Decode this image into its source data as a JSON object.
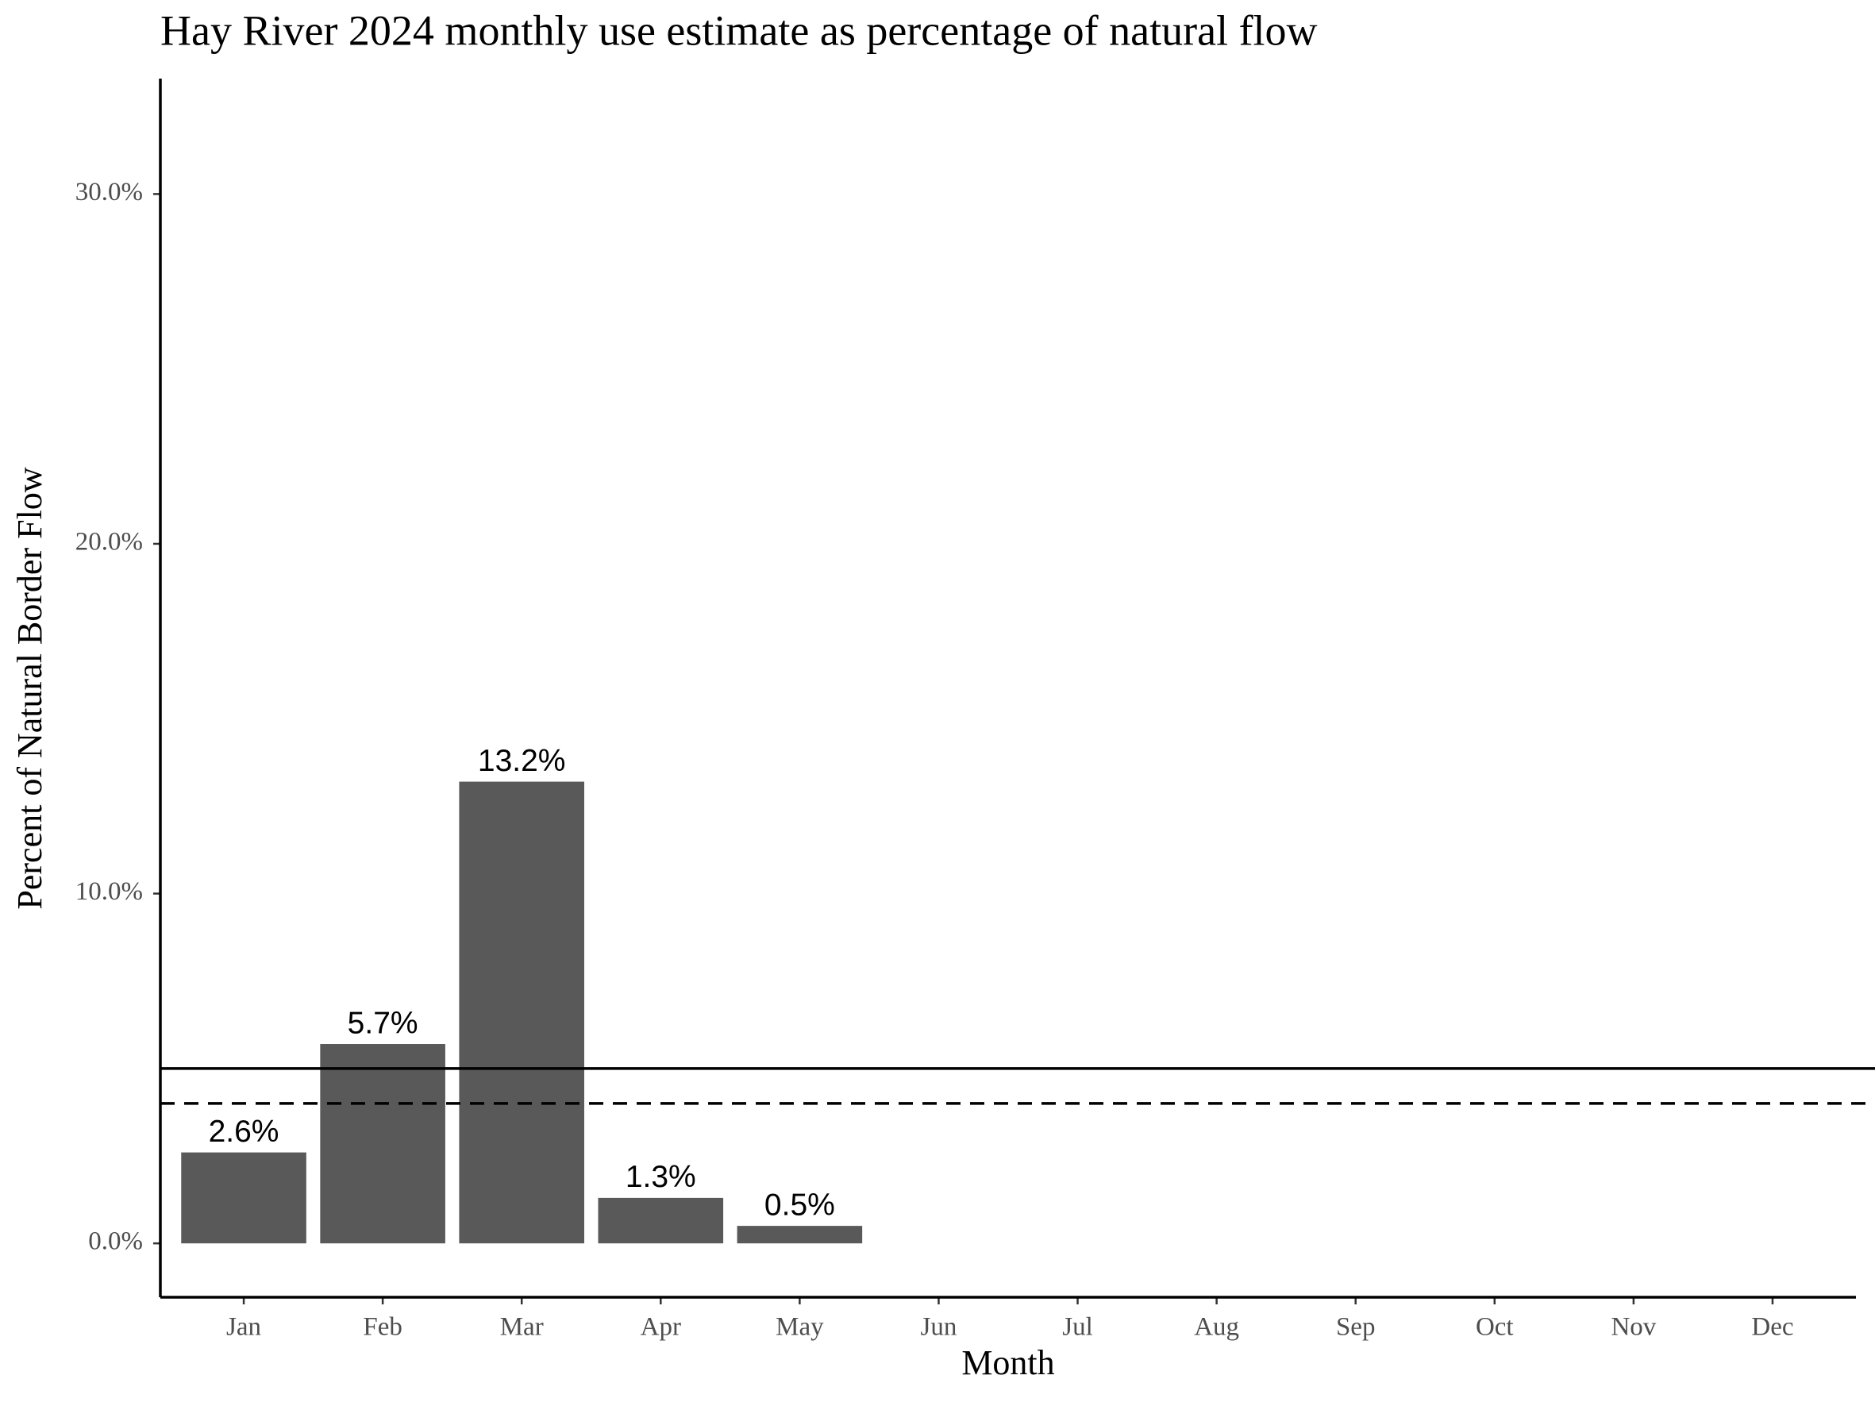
{
  "chart_data": {
    "type": "bar",
    "title": "Hay River 2024 monthly use estimate as percentage of natural flow",
    "x_label": "Month",
    "y_label": "Percent of Natural Border Flow",
    "categories": [
      "Jan",
      "Feb",
      "Mar",
      "Apr",
      "May",
      "Jun",
      "Jul",
      "Aug",
      "Sep",
      "Oct",
      "Nov",
      "Dec"
    ],
    "values": [
      2.6,
      5.7,
      13.2,
      1.3,
      0.5,
      null,
      null,
      null,
      null,
      null,
      null,
      null
    ],
    "value_labels": [
      "2.6%",
      "5.7%",
      "13.2%",
      "1.3%",
      "0.5%",
      null,
      null,
      null,
      null,
      null,
      null,
      null
    ],
    "color": "#595959",
    "ylim": [
      -1.54,
      33.3
    ],
    "yticks": [
      {
        "value": 0,
        "label": "0.0%"
      },
      {
        "value": 10,
        "label": "10.0%"
      },
      {
        "value": 20,
        "label": "20.0%"
      },
      {
        "value": 30,
        "label": "30.0%"
      }
    ],
    "hlines": [
      {
        "value": 5,
        "style": "solid"
      },
      {
        "value": 4,
        "style": "dashed"
      }
    ],
    "grid": false
  }
}
